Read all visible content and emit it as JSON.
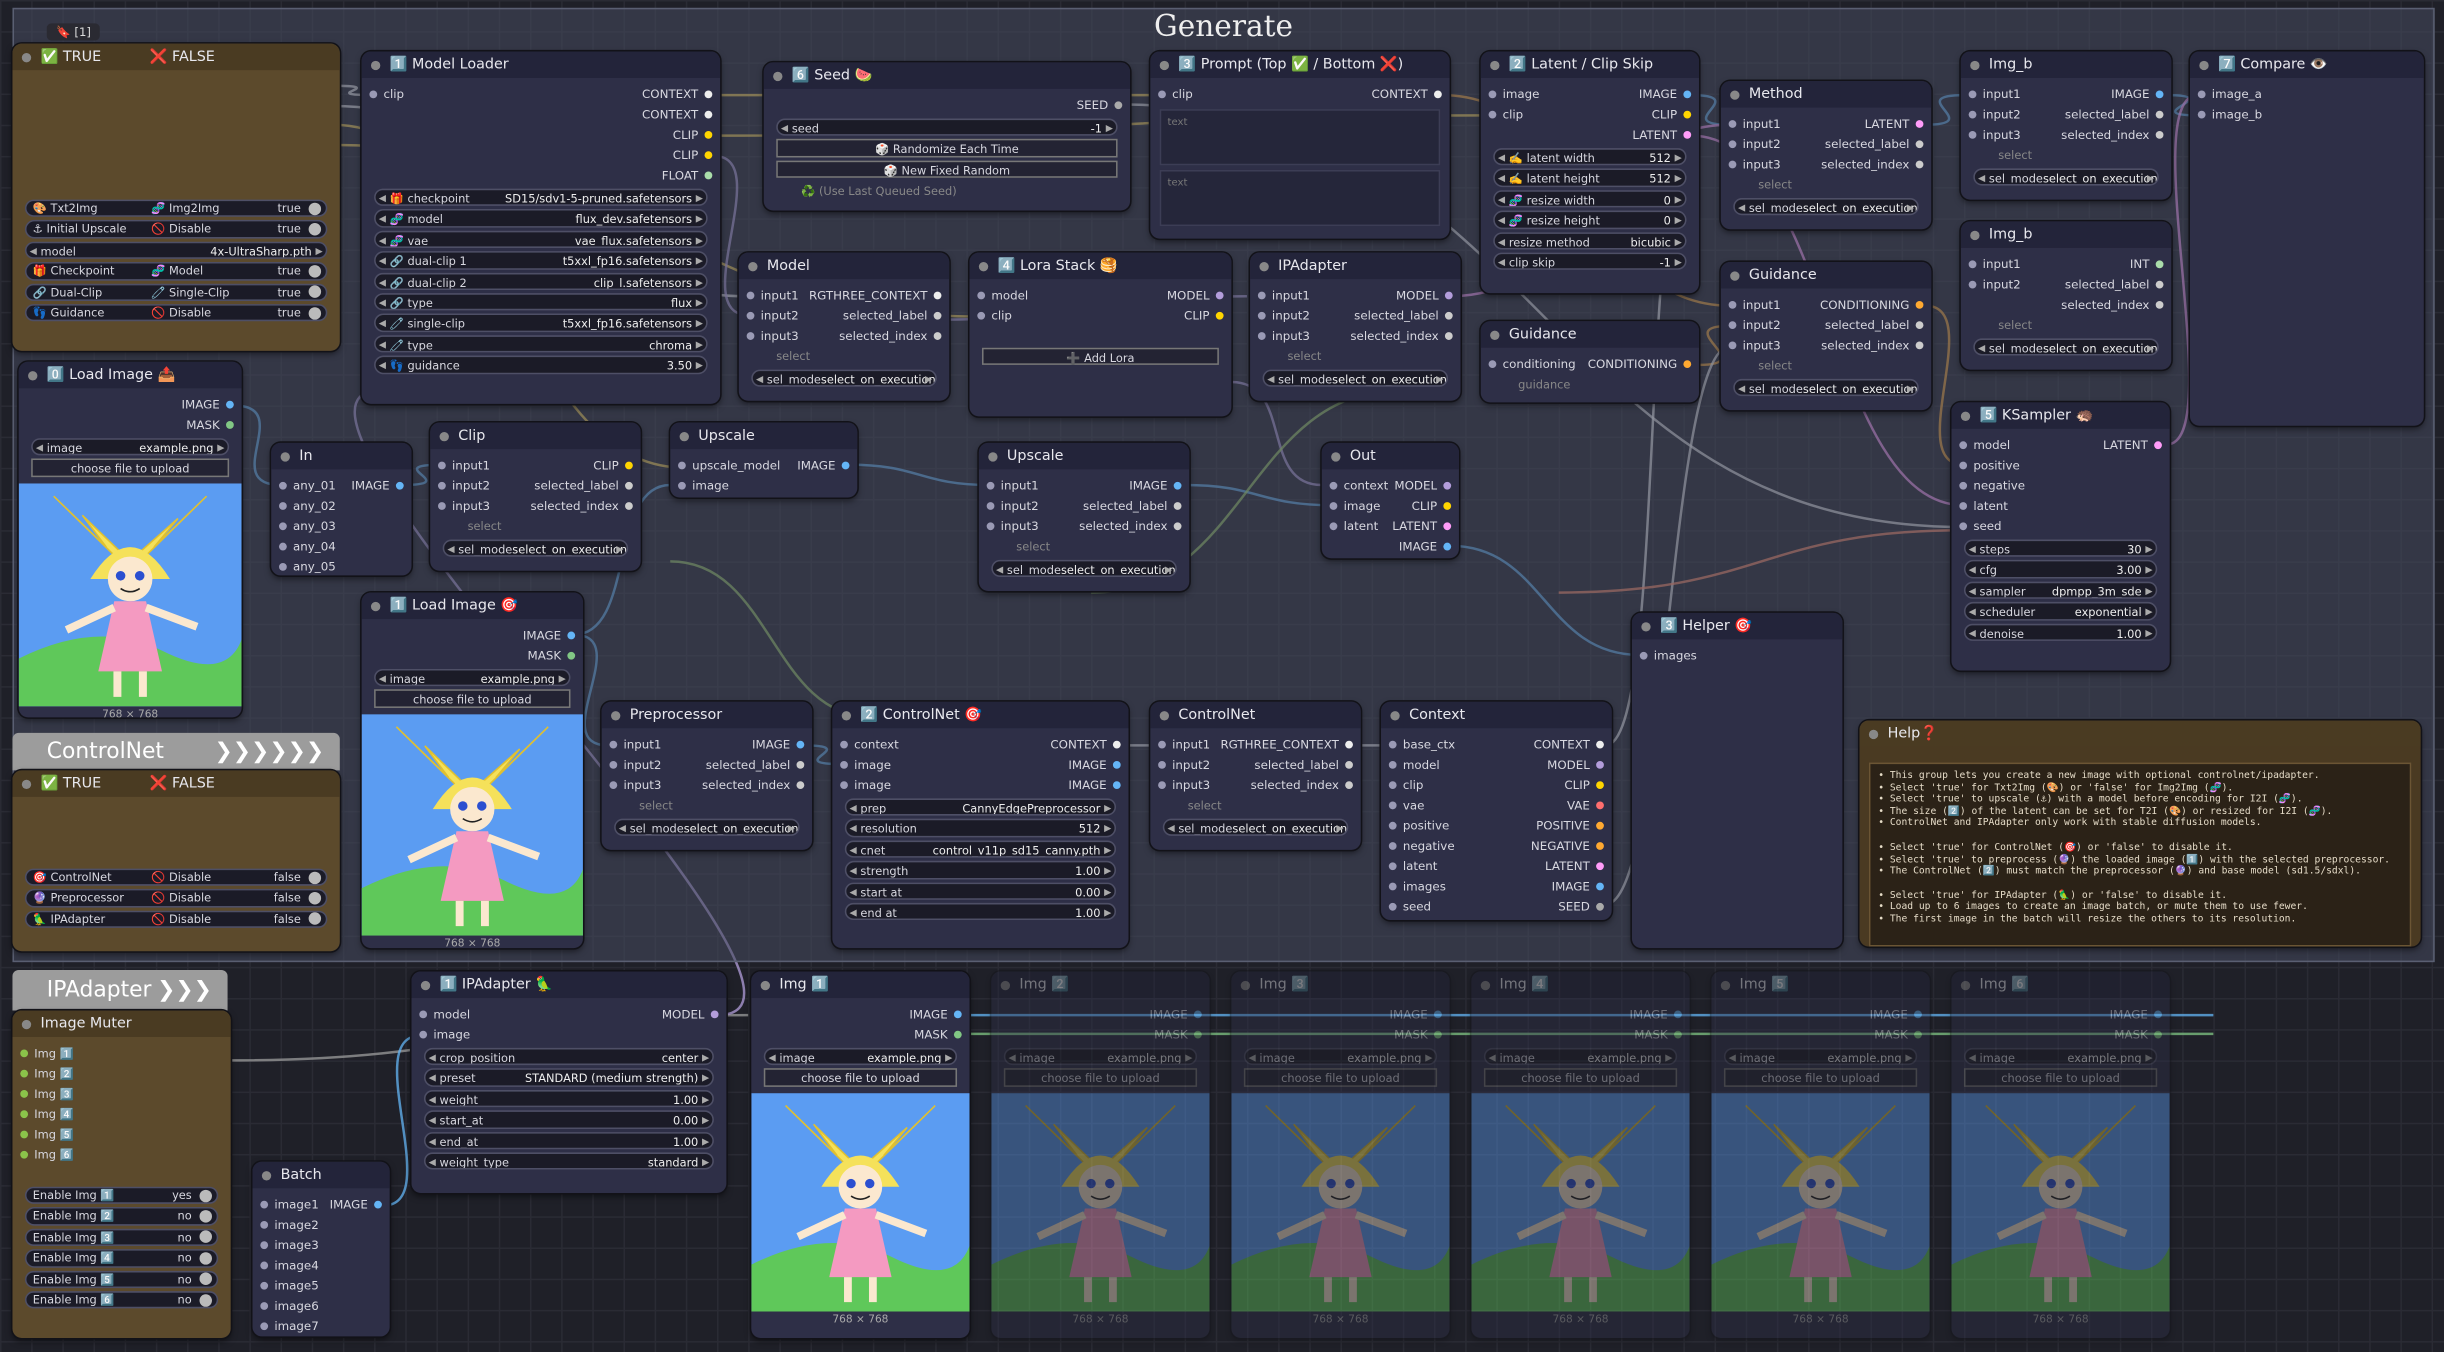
{
  "groups": [
    {
      "title": "Generate"
    },
    {
      "title": "ControlNet",
      "arrows": "❯❯❯❯❯❯"
    },
    {
      "title": "IPAdapter",
      "arrows": "❯❯❯"
    }
  ],
  "nodes": [
    {
      "title": "✅ TRUE",
      "title2": "❌ FALSE",
      "badge": "🔖 [1]",
      "rows": [
        {
          "toggle": [
            "🎨 Txt2Img",
            "🧬 Img2Img"
          ],
          "v": "true"
        },
        {
          "toggle": [
            "⚓ Initial Upscale",
            "🚫 Disable"
          ],
          "v": "true"
        },
        {
          "w": "model",
          "v": "4x-UltraSharp.pth"
        },
        {
          "toggle": [
            "🎁 Checkpoint",
            "🧬 Model"
          ],
          "v": "true"
        },
        {
          "toggle": [
            "🔗 Dual-Clip",
            "🧷 Single-Clip"
          ],
          "v": "true"
        },
        {
          "toggle": [
            "👣 Guidance",
            "🚫 Disable"
          ],
          "v": "true"
        }
      ]
    },
    {
      "title": "0️⃣ Load Image 📤",
      "outputs": [
        "IMAGE",
        "MASK"
      ],
      "rows": [
        {
          "w": "image",
          "v": "example.png"
        },
        {
          "btn": "choose file to upload"
        },
        {
          "image": "768 × 768"
        }
      ]
    },
    {
      "title": "✅ TRUE",
      "title2": "❌ FALSE",
      "rows": [
        {
          "toggle": [
            "🎯 ControlNet",
            "🚫 Disable"
          ],
          "v": "false"
        },
        {
          "toggle": [
            "🔮 Preprocessor",
            "🚫 Disable"
          ],
          "v": "false"
        },
        {
          "toggle": [
            "🦜 IPAdapter",
            "🚫 Disable"
          ],
          "v": "false"
        }
      ]
    },
    {
      "title": "1️⃣ Model Loader",
      "inputs": [
        "clip"
      ],
      "outputs": [
        "CONTEXT",
        "CONTEXT",
        "CLIP",
        "CLIP",
        "FLOAT"
      ],
      "rows": [
        {
          "w": "🎁 checkpoint",
          "v": "SD15/sdv1-5-pruned.safetensors"
        },
        {
          "w": "🧬 model",
          "v": "flux_dev.safetensors"
        },
        {
          "w": "🧬 vae",
          "v": "vae_flux.safetensors"
        },
        {
          "w": "🔗 dual-clip 1",
          "v": "t5xxl_fp16.safetensors"
        },
        {
          "w": "🔗 dual-clip 2",
          "v": "clip_l.safetensors"
        },
        {
          "w": "🔗 type",
          "v": "flux"
        },
        {
          "w": "🧷 single-clip",
          "v": "t5xxl_fp16.safetensors"
        },
        {
          "w": "🧷 type",
          "v": "chroma"
        },
        {
          "w": "👣 guidance",
          "v": "3.50"
        }
      ]
    },
    {
      "title": "6️⃣ Seed 🍉",
      "outputs": [
        "SEED"
      ],
      "rows": [
        {
          "w": "seed",
          "v": "-1"
        },
        {
          "btn": "🎲 Randomize Each Time"
        },
        {
          "btn": "🎲 New Fixed Random"
        },
        {
          "note": "♻️ (Use Last Queued Seed)"
        }
      ]
    },
    {
      "title": "3️⃣ Prompt (Top ✅ / Bottom ❌)",
      "inputs": [
        "clip"
      ],
      "outputs": [
        "CONTEXT"
      ],
      "rows": [
        {
          "area": "text"
        },
        {
          "area": "text"
        }
      ]
    },
    {
      "title": "2️⃣ Latent / Clip Skip",
      "inputs": [
        "image",
        "clip"
      ],
      "outputs": [
        "IMAGE",
        "CLIP",
        "LATENT"
      ],
      "rows": [
        {
          "w": "✍️ latent width",
          "v": "512"
        },
        {
          "w": "✍️ latent height",
          "v": "512"
        },
        {
          "w": "🧬 resize width",
          "v": "0"
        },
        {
          "w": "🧬 resize height",
          "v": "0"
        },
        {
          "w": "resize method",
          "v": "bicubic"
        },
        {
          "w": "clip skip",
          "v": "-1"
        }
      ]
    },
    {
      "title": "Method",
      "inputs": [
        "input1",
        "input2",
        "input3"
      ],
      "outputs": [
        "LATENT",
        "selected_label",
        "selected_index"
      ],
      "rows": [
        {
          "note": "select"
        },
        {
          "w": "sel_mode",
          "v": "select_on_execution"
        }
      ]
    },
    {
      "title": "Img_b",
      "inputs": [
        "input1",
        "input2",
        "input3"
      ],
      "outputs": [
        "IMAGE",
        "selected_label",
        "selected_index"
      ],
      "rows": [
        {
          "note": "select"
        },
        {
          "w": "sel_mode",
          "v": "select_on_execution"
        }
      ]
    },
    {
      "title": "Img_b",
      "inputs": [
        "input1",
        "input2"
      ],
      "outputs": [
        "INT",
        "selected_label",
        "selected_index"
      ],
      "rows": [
        {
          "note": "select"
        },
        {
          "w": "sel_mode",
          "v": "select_on_execution"
        }
      ]
    },
    {
      "title": "7️⃣ Compare 👁️",
      "inputs": [
        "image_a",
        "image_b"
      ]
    },
    {
      "title": "Guidance",
      "inputs": [
        "input1",
        "input2",
        "input3"
      ],
      "outputs": [
        "CONDITIONING",
        "selected_label",
        "selected_index"
      ],
      "rows": [
        {
          "note": "select"
        },
        {
          "w": "sel_mode",
          "v": "select_on_execution"
        }
      ]
    },
    {
      "title": "Guidance",
      "inputs": [
        "conditioning"
      ],
      "outputs": [
        "CONDITIONING"
      ],
      "rows": [
        {
          "note": "guidance"
        }
      ]
    },
    {
      "title": "Model",
      "inputs": [
        "input1",
        "input2",
        "input3"
      ],
      "outputs": [
        "RGTHREE_CONTEXT",
        "selected_label",
        "selected_index"
      ],
      "rows": [
        {
          "note": "select"
        },
        {
          "w": "sel_mode",
          "v": "select_on_execution"
        }
      ]
    },
    {
      "title": "4️⃣ Lora Stack 🥞",
      "inputs": [
        "model",
        "clip"
      ],
      "outputs": [
        "MODEL",
        "CLIP"
      ],
      "rows": [
        {
          "btn": "➕ Add Lora"
        }
      ]
    },
    {
      "title": "IPAdapter",
      "inputs": [
        "input1",
        "input2",
        "input3"
      ],
      "outputs": [
        "MODEL",
        "selected_label",
        "selected_index"
      ],
      "rows": [
        {
          "note": "select"
        },
        {
          "w": "sel_mode",
          "v": "select_on_execution"
        }
      ]
    },
    {
      "title": "In",
      "inputs": [
        "any_01",
        "any_02",
        "any_03",
        "any_04",
        "any_05"
      ],
      "outputs": [
        "IMAGE"
      ]
    },
    {
      "title": "Clip",
      "inputs": [
        "input1",
        "input2",
        "input3"
      ],
      "outputs": [
        "CLIP",
        "selected_label",
        "selected_index"
      ],
      "rows": [
        {
          "note": "select"
        },
        {
          "w": "sel_mode",
          "v": "select_on_execution"
        }
      ]
    },
    {
      "title": "Upscale",
      "inputs": [
        "upscale_model",
        "image"
      ],
      "outputs": [
        "IMAGE"
      ]
    },
    {
      "title": "Upscale",
      "inputs": [
        "input1",
        "input2",
        "input3"
      ],
      "outputs": [
        "IMAGE",
        "selected_label",
        "selected_index"
      ],
      "rows": [
        {
          "note": "select"
        },
        {
          "w": "sel_mode",
          "v": "select_on_execution"
        }
      ]
    },
    {
      "title": "Out",
      "inputs": [
        "context",
        "image",
        "latent"
      ],
      "outputs": [
        "MODEL",
        "CLIP",
        "LATENT",
        "IMAGE"
      ]
    },
    {
      "title": "5️⃣ KSampler 🦔",
      "inputs": [
        "model",
        "positive",
        "negative",
        "latent",
        "seed"
      ],
      "outputs": [
        "LATENT"
      ],
      "rows": [
        {
          "w": "steps",
          "v": "30"
        },
        {
          "w": "cfg",
          "v": "3.00"
        },
        {
          "w": "sampler",
          "v": "dpmpp_3m_sde"
        },
        {
          "w": "scheduler",
          "v": "exponential"
        },
        {
          "w": "denoise",
          "v": "1.00"
        }
      ]
    },
    {
      "title": "1️⃣ Load Image 🎯",
      "outputs": [
        "IMAGE",
        "MASK"
      ],
      "rows": [
        {
          "w": "image",
          "v": "example.png"
        },
        {
          "btn": "choose file to upload"
        },
        {
          "image": "768 × 768"
        }
      ]
    },
    {
      "title": "3️⃣ Helper 🎯",
      "inputs": [
        "images"
      ]
    },
    {
      "title": "Preprocessor",
      "inputs": [
        "input1",
        "input2",
        "input3"
      ],
      "outputs": [
        "IMAGE",
        "selected_label",
        "selected_index"
      ],
      "rows": [
        {
          "note": "select"
        },
        {
          "w": "sel_mode",
          "v": "select_on_execution"
        }
      ]
    },
    {
      "title": "2️⃣ ControlNet 🎯",
      "inputs": [
        "context",
        "image",
        "image"
      ],
      "outputs": [
        "CONTEXT",
        "IMAGE",
        "IMAGE"
      ],
      "rows": [
        {
          "w": "prep",
          "v": "CannyEdgePreprocessor"
        },
        {
          "w": "resolution",
          "v": "512"
        },
        {
          "w": "cnet",
          "v": "control_v11p_sd15_canny.pth"
        },
        {
          "w": "strength",
          "v": "1.00"
        },
        {
          "w": "start at",
          "v": "0.00"
        },
        {
          "w": "end at",
          "v": "1.00"
        }
      ]
    },
    {
      "title": "ControlNet",
      "inputs": [
        "input1",
        "input2",
        "input3"
      ],
      "outputs": [
        "RGTHREE_CONTEXT",
        "selected_label",
        "selected_index"
      ],
      "rows": [
        {
          "note": "select"
        },
        {
          "w": "sel_mode",
          "v": "select_on_execution"
        }
      ]
    },
    {
      "title": "Context",
      "inputs": [
        "base_ctx",
        "model",
        "clip",
        "vae",
        "positive",
        "negative",
        "latent",
        "images",
        "seed"
      ],
      "outputs": [
        "CONTEXT",
        "MODEL",
        "CLIP",
        "VAE",
        "POSITIVE",
        "NEGATIVE",
        "LATENT",
        "IMAGE",
        "SEED"
      ]
    },
    {
      "title": "Help❓",
      "rows": [
        {
          "para": [
            "• This group lets you create a new image with optional controlnet/ipadapter.",
            "• Select 'true' for Txt2Img (🎨) or 'false' for Img2Img (🧬).",
            "• Select 'true' to upscale (⚓) with a model before encoding for I2I (🧬).",
            "• The size (2️⃣) of the latent can be set for T2I (🎨) or resized for I2I (🧬).",
            "• ControlNet and IPAdapter only work with stable diffusion models."
          ]
        },
        {
          "para": [
            "• Select 'true' for ControlNet (🎯) or 'false' to disable it.",
            "• Select 'true' to preprocess (🔮) the loaded image (1️⃣) with the selected preprocessor.",
            "• The ControlNet (2️⃣) must match the preprocessor (🔮) and base model (sd1.5/sdxl)."
          ]
        },
        {
          "para": [
            "• Select 'true' for IPAdapter (🦜) or 'false' to disable it.",
            "• Load up to 6 images to create an image batch, or mute them to use fewer.",
            "• The first image in the batch will resize the others to its resolution."
          ]
        }
      ]
    },
    {
      "title": "Image Muter",
      "rows": [
        {
          "check": "Img 1️⃣"
        },
        {
          "check": "Img 2️⃣"
        },
        {
          "check": "Img 3️⃣"
        },
        {
          "check": "Img 4️⃣"
        },
        {
          "check": "Img 5️⃣"
        },
        {
          "check": "Img 6️⃣"
        },
        {
          "toggle": [
            "Enable Img 1️⃣"
          ],
          "v": "yes"
        },
        {
          "toggle": [
            "Enable Img 2️⃣"
          ],
          "v": "no"
        },
        {
          "toggle": [
            "Enable Img 3️⃣"
          ],
          "v": "no"
        },
        {
          "toggle": [
            "Enable Img 4️⃣"
          ],
          "v": "no"
        },
        {
          "toggle": [
            "Enable Img 5️⃣"
          ],
          "v": "no"
        },
        {
          "toggle": [
            "Enable Img 6️⃣"
          ],
          "v": "no"
        }
      ]
    },
    {
      "title": "Batch",
      "inputs": [
        "image1",
        "image2",
        "image3",
        "image4",
        "image5",
        "image6",
        "image7"
      ],
      "outputs": [
        "IMAGE"
      ]
    },
    {
      "title": "1️⃣ IPAdapter 🦜",
      "inputs": [
        "model",
        "image"
      ],
      "outputs": [
        "MODEL"
      ],
      "rows": [
        {
          "w": "crop_position",
          "v": "center"
        },
        {
          "w": "preset",
          "v": "STANDARD (medium strength)"
        },
        {
          "w": "weight",
          "v": "1.00"
        },
        {
          "w": "start_at",
          "v": "0.00"
        },
        {
          "w": "end_at",
          "v": "1.00"
        },
        {
          "w": "weight_type",
          "v": "standard"
        }
      ]
    },
    {
      "title": "Img 1️⃣",
      "outputs": [
        "IMAGE",
        "MASK"
      ],
      "rows": [
        {
          "w": "image",
          "v": "example.png"
        },
        {
          "btn": "choose file to upload"
        },
        {
          "image": "768 × 768"
        }
      ]
    },
    {
      "title": "Img 2️⃣",
      "muted": true,
      "outputs": [
        "IMAGE",
        "MASK"
      ],
      "rows": [
        {
          "w": "image",
          "v": "example.png"
        },
        {
          "btn": "choose file to upload"
        },
        {
          "image": "768 × 768"
        }
      ]
    },
    {
      "title": "Img 3️⃣",
      "muted": true,
      "outputs": [
        "IMAGE",
        "MASK"
      ],
      "rows": [
        {
          "w": "image",
          "v": "example.png"
        },
        {
          "btn": "choose file to upload"
        },
        {
          "image": "768 × 768"
        }
      ]
    },
    {
      "title": "Img 4️⃣",
      "muted": true,
      "outputs": [
        "IMAGE",
        "MASK"
      ],
      "rows": [
        {
          "w": "image",
          "v": "example.png"
        },
        {
          "btn": "choose file to upload"
        },
        {
          "image": "768 × 768"
        }
      ]
    },
    {
      "title": "Img 5️⃣",
      "muted": true,
      "outputs": [
        "IMAGE",
        "MASK"
      ],
      "rows": [
        {
          "w": "image",
          "v": "example.png"
        },
        {
          "btn": "choose file to upload"
        },
        {
          "image": "768 × 768"
        }
      ]
    },
    {
      "title": "Img 6️⃣",
      "muted": true,
      "outputs": [
        "IMAGE",
        "MASK"
      ],
      "rows": [
        {
          "w": "image",
          "v": "example.png"
        },
        {
          "btn": "choose file to upload"
        },
        {
          "image": "768 × 768"
        }
      ]
    }
  ]
}
